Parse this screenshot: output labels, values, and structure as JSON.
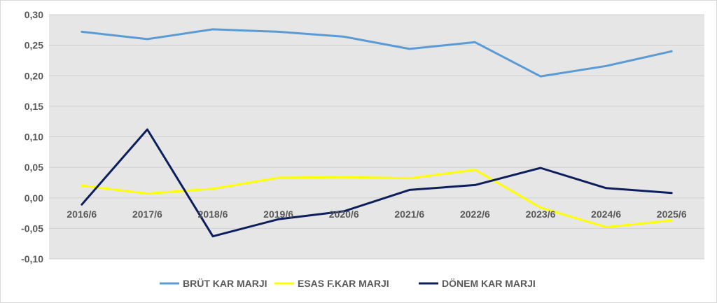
{
  "chart_data": {
    "type": "line",
    "categories": [
      "2016/6",
      "2017/6",
      "2018/6",
      "2019/6",
      "2020/6",
      "2021/6",
      "2022/6",
      "2023/6",
      "2024/6",
      "2025/6"
    ],
    "ylim": [
      -0.1,
      0.3
    ],
    "yticks": [
      "0,30",
      "0,25",
      "0,20",
      "0,15",
      "0,10",
      "0,05",
      "0,00",
      "-0,05",
      "-0,10"
    ],
    "ytick_values": [
      0.3,
      0.25,
      0.2,
      0.15,
      0.1,
      0.05,
      0.0,
      -0.05,
      -0.1
    ],
    "grid": true,
    "legend_position": "bottom",
    "plot_background": "#e6e6e6",
    "series": [
      {
        "name": "BRÜT KAR MARJI",
        "color": "#5b9bd5",
        "values": [
          0.272,
          0.26,
          0.276,
          0.272,
          0.264,
          0.244,
          0.255,
          0.199,
          0.216,
          0.24
        ]
      },
      {
        "name": "ESAS F.KAR MARJI",
        "color": "#ffff00",
        "values": [
          0.02,
          0.007,
          0.015,
          0.033,
          0.034,
          0.032,
          0.046,
          -0.016,
          -0.048,
          -0.037
        ]
      },
      {
        "name": "DÖNEM KAR MARJI",
        "color": "#0c1f5c",
        "values": [
          -0.011,
          0.112,
          -0.063,
          -0.035,
          -0.022,
          0.013,
          0.021,
          0.049,
          0.016,
          0.008
        ]
      }
    ]
  }
}
